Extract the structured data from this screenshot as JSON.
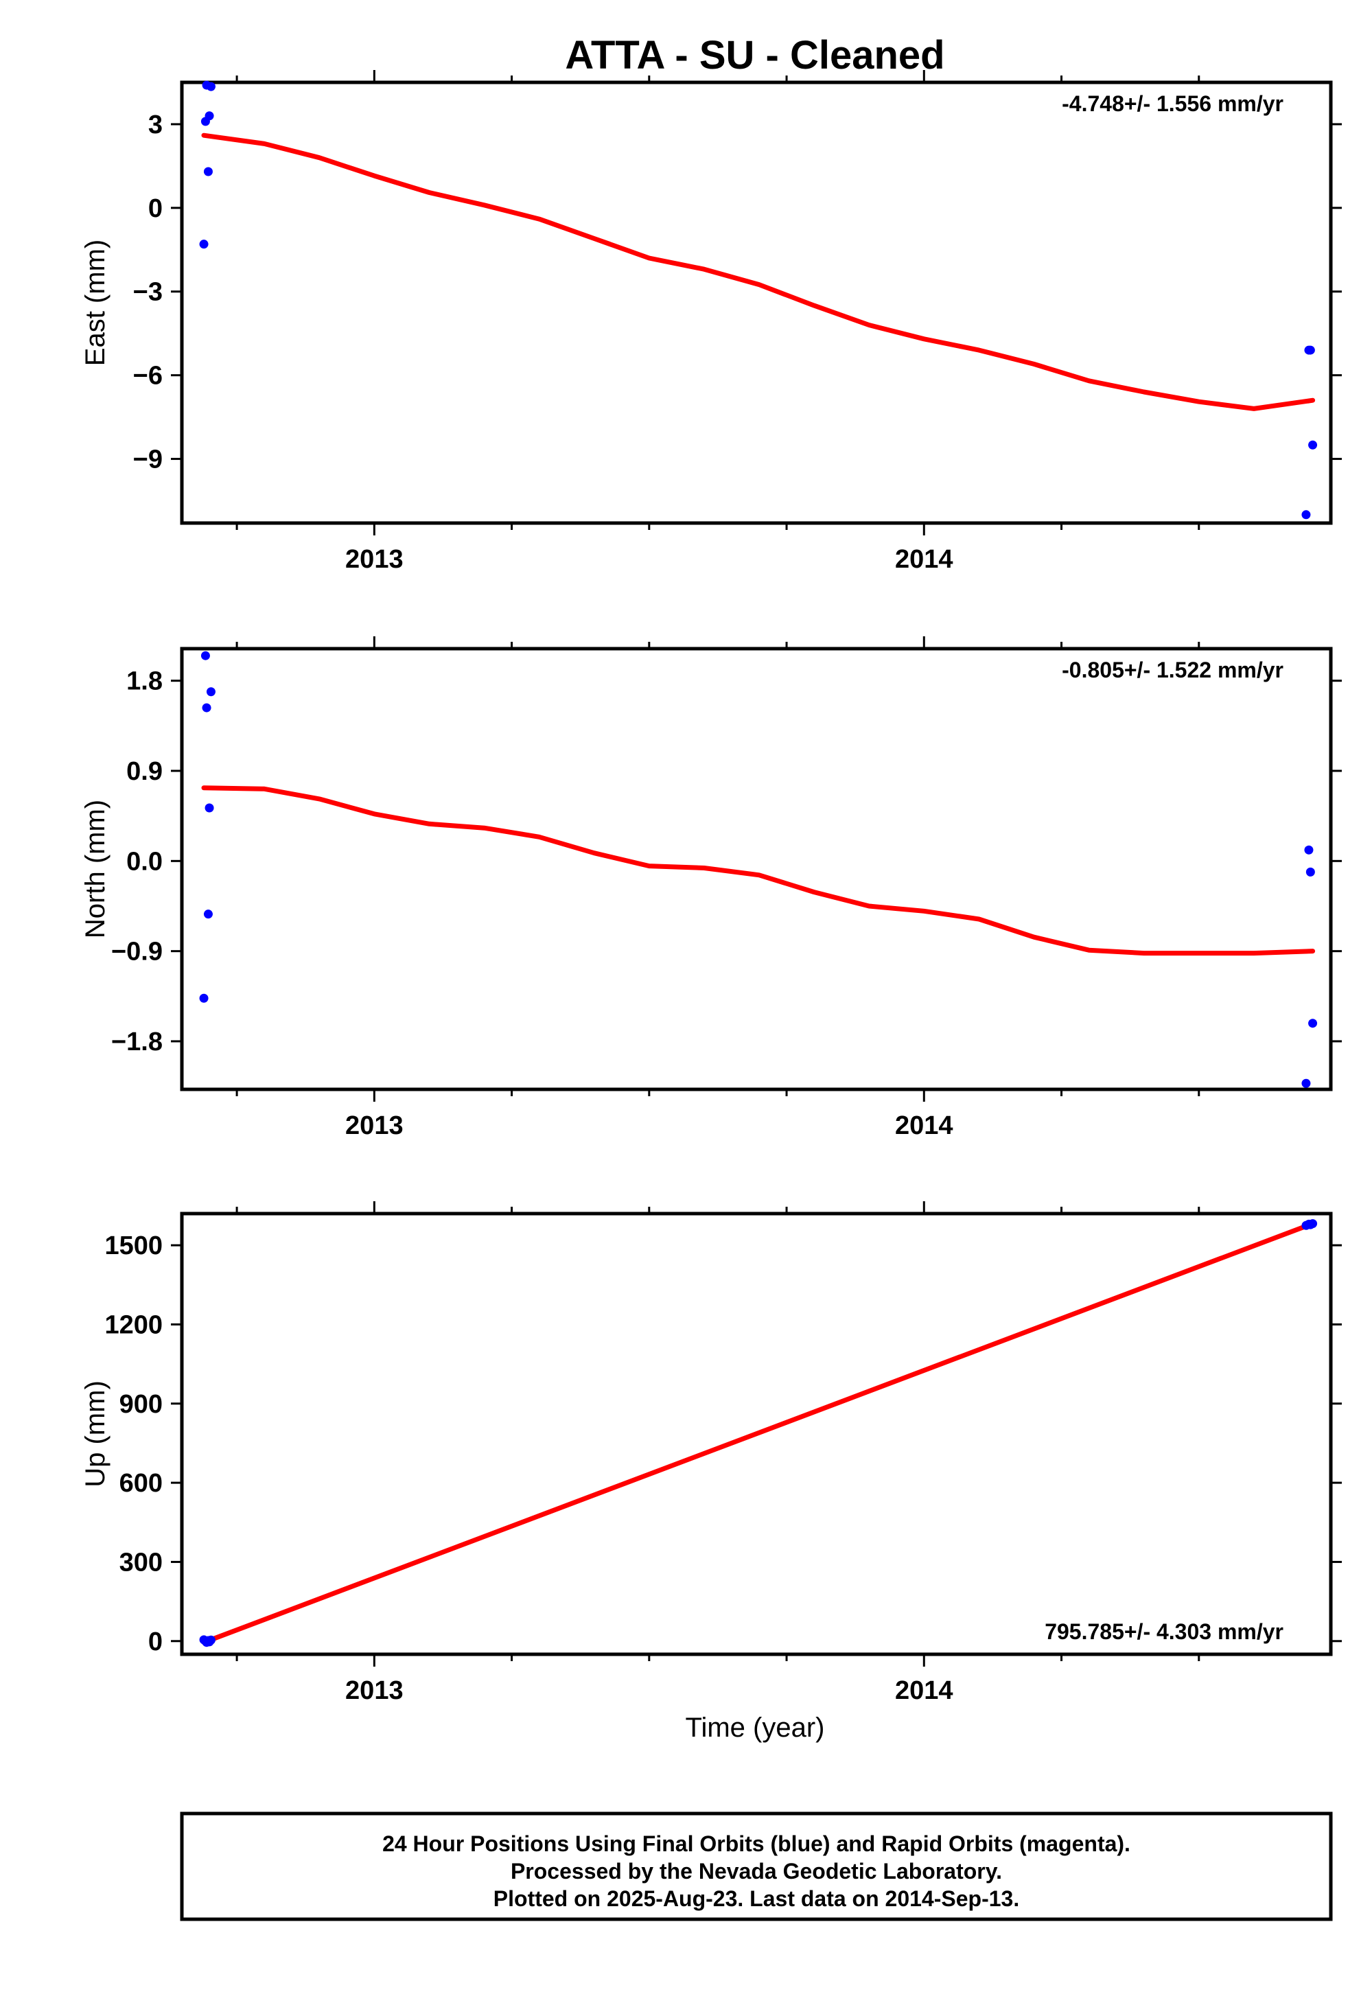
{
  "title": "ATTA  - SU - Cleaned",
  "xlabel": "Time (year)",
  "footer": {
    "line1": "24 Hour Positions Using Final Orbits (blue) and Rapid Orbits (magenta).",
    "line2": "Processed by the Nevada Geodetic Laboratory.",
    "line3": "Plotted on 2025-Aug-23. Last data on 2014-Sep-13."
  },
  "colors": {
    "data_points": "#0000ff",
    "fit_line": "#ff0000",
    "axes": "#000000"
  },
  "chart_data": [
    {
      "type": "scatter",
      "ylabel": "East (mm)",
      "rate_label": "-4.748+/- 1.556 mm/yr",
      "rate_position": "top-right",
      "xlim": [
        2012.65,
        2014.74
      ],
      "ylim": [
        -11.3,
        4.5
      ],
      "xticks": [
        2013,
        2014
      ],
      "xtick_labels": [
        "2013",
        "2014"
      ],
      "yticks": [
        3,
        0,
        -3,
        -6,
        -9
      ],
      "ytick_labels": [
        "3",
        "0",
        "−3",
        "−6",
        "−9"
      ],
      "points": [
        {
          "x": 2012.69,
          "y": -1.3
        },
        {
          "x": 2012.693,
          "y": 3.1
        },
        {
          "x": 2012.695,
          "y": 4.4
        },
        {
          "x": 2012.698,
          "y": 1.3
        },
        {
          "x": 2012.7,
          "y": 3.3
        },
        {
          "x": 2012.703,
          "y": 4.35
        },
        {
          "x": 2014.695,
          "y": -11.0
        },
        {
          "x": 2014.7,
          "y": -5.1
        },
        {
          "x": 2014.703,
          "y": -5.1
        },
        {
          "x": 2014.707,
          "y": -8.5
        }
      ],
      "fit": [
        [
          2012.69,
          2.6
        ],
        [
          2012.8,
          2.3
        ],
        [
          2012.9,
          1.8
        ],
        [
          2013.0,
          1.15
        ],
        [
          2013.1,
          0.55
        ],
        [
          2013.2,
          0.1
        ],
        [
          2013.3,
          -0.4
        ],
        [
          2013.4,
          -1.1
        ],
        [
          2013.5,
          -1.8
        ],
        [
          2013.6,
          -2.2
        ],
        [
          2013.7,
          -2.75
        ],
        [
          2013.8,
          -3.5
        ],
        [
          2013.9,
          -4.2
        ],
        [
          2014.0,
          -4.7
        ],
        [
          2014.1,
          -5.1
        ],
        [
          2014.2,
          -5.6
        ],
        [
          2014.3,
          -6.2
        ],
        [
          2014.4,
          -6.6
        ],
        [
          2014.5,
          -6.95
        ],
        [
          2014.6,
          -7.2
        ],
        [
          2014.707,
          -6.9
        ]
      ]
    },
    {
      "type": "scatter",
      "ylabel": "North (mm)",
      "rate_label": "-0.805+/- 1.522 mm/yr",
      "rate_position": "top-right",
      "xlim": [
        2012.65,
        2014.74
      ],
      "ylim": [
        -2.28,
        2.12
      ],
      "xticks": [
        2013,
        2014
      ],
      "xtick_labels": [
        "2013",
        "2014"
      ],
      "yticks": [
        1.8,
        0.9,
        0.0,
        -0.9,
        -1.8
      ],
      "ytick_labels": [
        "1.8",
        "0.9",
        "0.0",
        "−0.9",
        "−1.8"
      ],
      "points": [
        {
          "x": 2012.69,
          "y": -1.37
        },
        {
          "x": 2012.693,
          "y": 2.05
        },
        {
          "x": 2012.695,
          "y": 1.53
        },
        {
          "x": 2012.698,
          "y": -0.53
        },
        {
          "x": 2012.7,
          "y": 0.53
        },
        {
          "x": 2012.703,
          "y": 1.69
        },
        {
          "x": 2014.695,
          "y": -2.22
        },
        {
          "x": 2014.7,
          "y": 0.11
        },
        {
          "x": 2014.703,
          "y": -0.11
        },
        {
          "x": 2014.707,
          "y": -1.62
        }
      ],
      "fit": [
        [
          2012.69,
          0.73
        ],
        [
          2012.8,
          0.72
        ],
        [
          2012.9,
          0.62
        ],
        [
          2013.0,
          0.47
        ],
        [
          2013.1,
          0.37
        ],
        [
          2013.2,
          0.33
        ],
        [
          2013.3,
          0.24
        ],
        [
          2013.4,
          0.08
        ],
        [
          2013.5,
          -0.05
        ],
        [
          2013.6,
          -0.07
        ],
        [
          2013.7,
          -0.14
        ],
        [
          2013.8,
          -0.31
        ],
        [
          2013.9,
          -0.45
        ],
        [
          2014.0,
          -0.5
        ],
        [
          2014.1,
          -0.58
        ],
        [
          2014.2,
          -0.76
        ],
        [
          2014.3,
          -0.89
        ],
        [
          2014.4,
          -0.92
        ],
        [
          2014.5,
          -0.92
        ],
        [
          2014.6,
          -0.92
        ],
        [
          2014.707,
          -0.9
        ]
      ]
    },
    {
      "type": "scatter",
      "ylabel": "Up (mm)",
      "rate_label": "795.785+/- 4.303 mm/yr",
      "rate_position": "bottom-right",
      "xlim": [
        2012.65,
        2014.74
      ],
      "ylim": [
        -50,
        1620
      ],
      "xticks": [
        2013,
        2014
      ],
      "xtick_labels": [
        "2013",
        "2014"
      ],
      "yticks": [
        1500,
        1200,
        900,
        600,
        300,
        0
      ],
      "ytick_labels": [
        "1500",
        "1200",
        "900",
        "600",
        "300",
        "0"
      ],
      "points": [
        {
          "x": 2012.69,
          "y": 5
        },
        {
          "x": 2012.693,
          "y": 0
        },
        {
          "x": 2012.695,
          "y": -5
        },
        {
          "x": 2012.698,
          "y": 2
        },
        {
          "x": 2012.7,
          "y": -3
        },
        {
          "x": 2012.703,
          "y": 4
        },
        {
          "x": 2014.695,
          "y": 1575
        },
        {
          "x": 2014.7,
          "y": 1580
        },
        {
          "x": 2014.703,
          "y": 1578
        },
        {
          "x": 2014.707,
          "y": 1582
        }
      ],
      "fit": [
        [
          2012.69,
          -5
        ],
        [
          2014.707,
          1582
        ]
      ]
    }
  ]
}
